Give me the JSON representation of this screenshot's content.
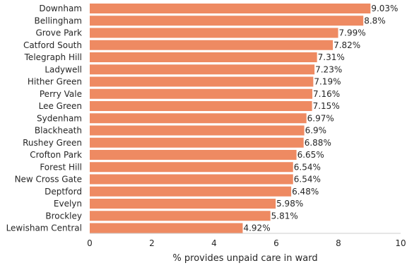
{
  "chart_data": {
    "type": "bar",
    "orientation": "horizontal",
    "xlabel": "% provides unpaid care in ward",
    "ylabel": "",
    "xlim": [
      0,
      10
    ],
    "x_ticks": [
      0,
      2,
      4,
      6,
      8,
      10
    ],
    "grid": false,
    "bar_color": "#EE8A62",
    "categories": [
      "Downham",
      "Bellingham",
      "Grove Park",
      "Catford South",
      "Telegraph Hill",
      "Ladywell",
      "Hither Green",
      "Perry Vale",
      "Lee Green",
      "Sydenham",
      "Blackheath",
      "Rushey Green",
      "Crofton Park",
      "Forest Hill",
      "New Cross Gate",
      "Deptford",
      "Evelyn",
      "Brockley",
      "Lewisham Central"
    ],
    "values": [
      9.03,
      8.8,
      7.99,
      7.82,
      7.31,
      7.23,
      7.19,
      7.16,
      7.15,
      6.97,
      6.9,
      6.88,
      6.65,
      6.54,
      6.54,
      6.48,
      5.98,
      5.81,
      4.92
    ],
    "data_labels": [
      "9.03%",
      "8.8%",
      "7.99%",
      "7.82%",
      "7.31%",
      "7.23%",
      "7.19%",
      "7.16%",
      "7.15%",
      "6.97%",
      "6.9%",
      "6.88%",
      "6.65%",
      "6.54%",
      "6.54%",
      "6.48%",
      "5.98%",
      "5.81%",
      "4.92%"
    ]
  }
}
